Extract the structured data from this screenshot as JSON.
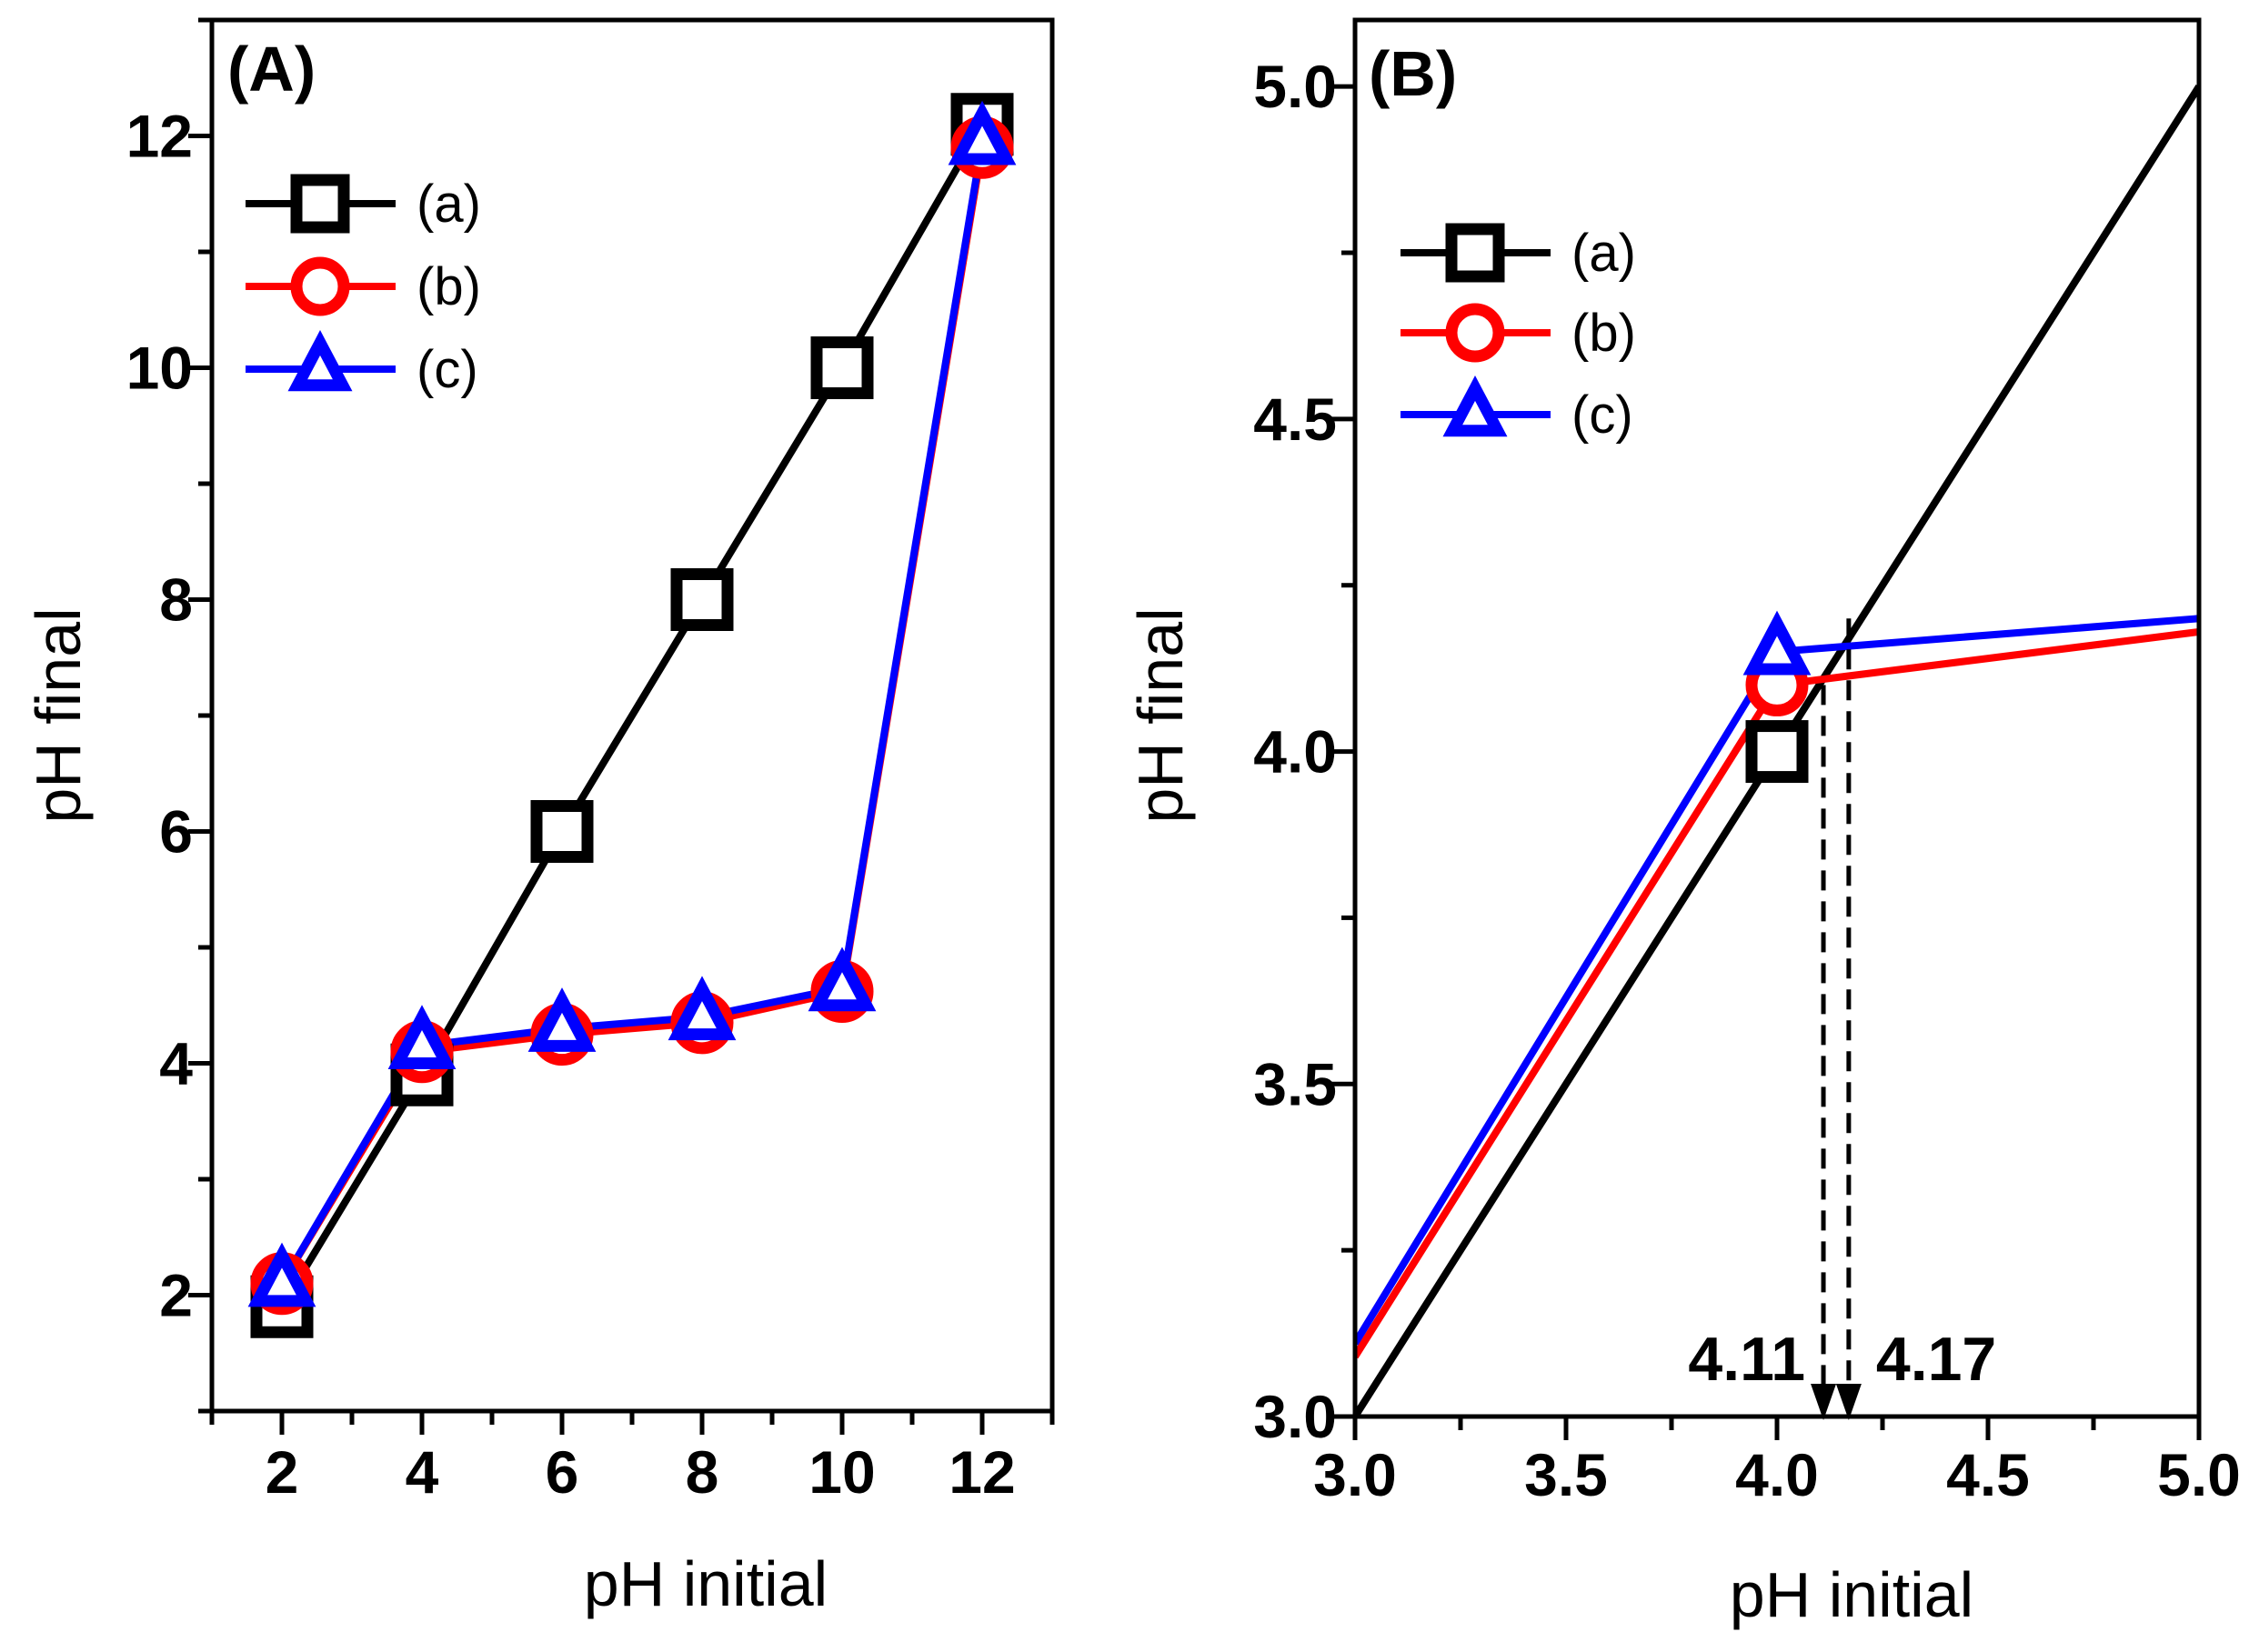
{
  "chart_data": [
    {
      "type": "line",
      "panel_label": "(A)",
      "xlabel": "pH initial",
      "ylabel": "pH final",
      "xlim": [
        1,
        13
      ],
      "ylim": [
        1,
        13
      ],
      "xticks": [
        2,
        4,
        6,
        8,
        10,
        12
      ],
      "yticks": [
        2,
        4,
        6,
        8,
        10,
        12
      ],
      "legend_position": "top-left",
      "series": [
        {
          "name": "(a)",
          "color": "#000000",
          "marker": "square",
          "x": [
            2,
            4,
            6,
            8,
            10,
            12
          ],
          "y": [
            1.9,
            3.9,
            6.0,
            8.0,
            10.0,
            12.1
          ]
        },
        {
          "name": "(b)",
          "color": "#ff0000",
          "marker": "circle",
          "x": [
            2,
            4,
            6,
            8,
            10,
            12
          ],
          "y": [
            2.1,
            4.1,
            4.25,
            4.35,
            4.62,
            11.9
          ]
        },
        {
          "name": "(c)",
          "color": "#0000ff",
          "marker": "triangle",
          "x": [
            2,
            4,
            6,
            8,
            10,
            12
          ],
          "y": [
            2.1,
            4.15,
            4.3,
            4.4,
            4.65,
            11.95
          ]
        }
      ]
    },
    {
      "type": "line",
      "panel_label": "(B)",
      "xlabel": "pH initial",
      "ylabel": "pH final",
      "xlim": [
        3.0,
        5.0
      ],
      "ylim": [
        3.0,
        5.1
      ],
      "xticks": [
        "3.0",
        "3.5",
        "4.0",
        "4.5",
        "5.0"
      ],
      "yticks": [
        "3.0",
        "3.5",
        "4.0",
        "4.5",
        "5.0"
      ],
      "legend_position": "top-left",
      "series": [
        {
          "name": "(a)",
          "color": "#000000",
          "marker": "square",
          "x": [
            3.0,
            4.0,
            5.0
          ],
          "y": [
            3.0,
            4.0,
            5.0
          ],
          "marker_points": [
            [
              4.0,
              4.0
            ]
          ]
        },
        {
          "name": "(b)",
          "color": "#ff0000",
          "marker": "circle",
          "x": [
            3.0,
            4.0,
            5.0
          ],
          "y": [
            3.09,
            4.1,
            4.18
          ],
          "marker_points": [
            [
              4.0,
              4.1
            ]
          ]
        },
        {
          "name": "(c)",
          "color": "#0000ff",
          "marker": "triangle",
          "x": [
            3.0,
            4.0,
            5.0
          ],
          "y": [
            3.11,
            4.15,
            4.2
          ],
          "marker_points": [
            [
              4.0,
              4.15
            ]
          ]
        }
      ],
      "annotations": [
        {
          "text": "4.11",
          "x": 4.11,
          "y_from": 4.1,
          "y_to": 3.0
        },
        {
          "text": "4.17",
          "x": 4.17,
          "y_from": 4.2,
          "y_to": 3.0
        }
      ]
    }
  ]
}
